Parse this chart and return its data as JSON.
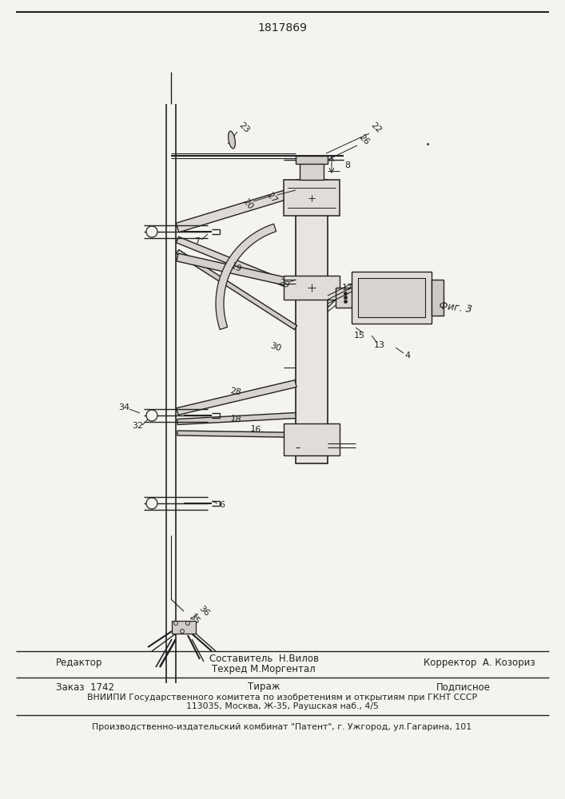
{
  "patent_number": "1817869",
  "fig_label": "Фиг. 3",
  "bg_color": "#f5f3f0",
  "line_color": "#222222",
  "footer": {
    "editor_label": "Редактор",
    "compiler_label": "Составитель  Н.Вилов",
    "techred_label": "Техред М.Моргентал",
    "corrector_label": "Корректор  А. Козориз",
    "order_label": "Заказ  1742",
    "tirazh_label": "Тираж",
    "podpisnoe_label": "Подписное",
    "vniipи_line": "ВНИИПИ Государственного комитета по изобретениям и открытиям при ГКНТ СССР",
    "address_line": "113035, Москва, Ж-35, Раушская наб., 4/5",
    "publisher_line": "Производственно-издательский комбинат \"Патент\", г. Ужгород, ул.Гагарина, 101"
  }
}
